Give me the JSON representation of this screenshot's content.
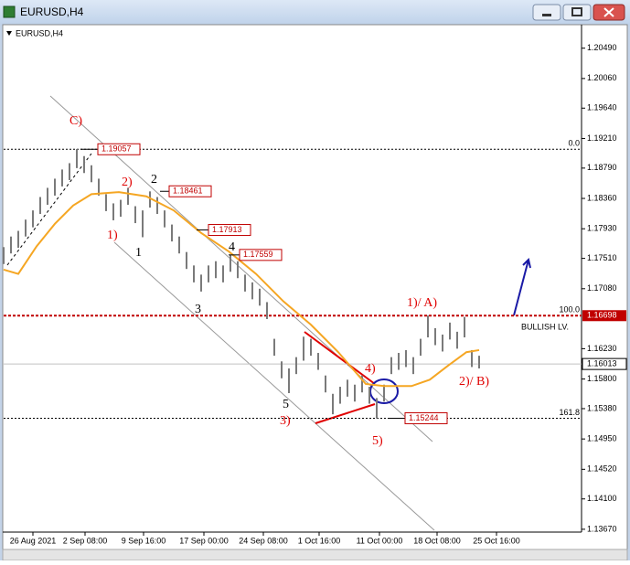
{
  "window_title": "EURUSD,H4",
  "chart_data": {
    "type": "ohlc",
    "title": "EURUSD,H4",
    "color": "#7a7a7a",
    "x": [
      0,
      4,
      8,
      12,
      16,
      20,
      24,
      28,
      32,
      36,
      40,
      44,
      48,
      52,
      56,
      60,
      64,
      68,
      72,
      76,
      80,
      84,
      88,
      92,
      96,
      100,
      104,
      108,
      112,
      116,
      120,
      124,
      128,
      132,
      136,
      140,
      144,
      148,
      152,
      156,
      160,
      164,
      168,
      172,
      176,
      180,
      184,
      188,
      192,
      196,
      200,
      204,
      208,
      212,
      216,
      220,
      224,
      228,
      232,
      236,
      240,
      244,
      248,
      252,
      256,
      260
    ],
    "high": [
      1.1767,
      1.1782,
      1.179,
      1.1806,
      1.1819,
      1.1838,
      1.1851,
      1.1864,
      1.1877,
      1.1886,
      1.1906,
      1.1896,
      1.1883,
      1.1864,
      1.1842,
      1.1829,
      1.1834,
      1.1851,
      1.1825,
      1.1819,
      1.1846,
      1.1838,
      1.1819,
      1.1799,
      1.1782,
      1.176,
      1.1741,
      1.1728,
      1.1741,
      1.1747,
      1.1741,
      1.1756,
      1.1747,
      1.1728,
      1.1717,
      1.1708,
      1.1689,
      1.1637,
      1.1605,
      1.1595,
      1.1611,
      1.164,
      1.1637,
      1.1617,
      1.1585,
      1.1559,
      1.1569,
      1.1579,
      1.1572,
      1.1585,
      1.1569,
      1.1553,
      1.1572,
      1.1611,
      1.1617,
      1.1621,
      1.1611,
      1.1637,
      1.167,
      1.1652,
      1.1643,
      1.166,
      1.1647,
      1.1668,
      1.1621,
      1.1613
    ],
    "low": [
      1.1743,
      1.1758,
      1.1766,
      1.1782,
      1.1795,
      1.1814,
      1.1827,
      1.184,
      1.1853,
      1.1862,
      1.1879,
      1.1872,
      1.1859,
      1.184,
      1.1818,
      1.1805,
      1.181,
      1.1827,
      1.1801,
      1.1781,
      1.1823,
      1.1814,
      1.1795,
      1.1775,
      1.1758,
      1.1736,
      1.1717,
      1.1704,
      1.1717,
      1.1723,
      1.1717,
      1.1732,
      1.1723,
      1.1704,
      1.1693,
      1.1684,
      1.1665,
      1.1613,
      1.1581,
      1.156,
      1.1587,
      1.1606,
      1.1613,
      1.1593,
      1.1561,
      1.153,
      1.1545,
      1.1555,
      1.1548,
      1.1561,
      1.1545,
      1.1524,
      1.1548,
      1.1587,
      1.1593,
      1.1597,
      1.1587,
      1.1613,
      1.1639,
      1.1628,
      1.1619,
      1.1636,
      1.1623,
      1.1639,
      1.1597,
      1.1595
    ],
    "ma": {
      "color": "#f5a623",
      "x": [
        0,
        8,
        18,
        28,
        38,
        48,
        63,
        78,
        93,
        108,
        123,
        138,
        153,
        168,
        183,
        198,
        208,
        223,
        233,
        243,
        253,
        260
      ],
      "values": [
        1.1735,
        1.1729,
        1.1768,
        1.18,
        1.1826,
        1.1842,
        1.1845,
        1.1839,
        1.1819,
        1.1787,
        1.1761,
        1.1729,
        1.169,
        1.1657,
        1.1618,
        1.1573,
        1.157,
        1.157,
        1.1579,
        1.1599,
        1.1618,
        1.1621
      ]
    },
    "xlim": [
      0,
      316
    ],
    "xticks": [
      {
        "value": 16,
        "label": "26 Aug 2021"
      },
      {
        "value": 44.5,
        "label": "2 Sep 08:00"
      },
      {
        "value": 76.5,
        "label": "9 Sep 16:00"
      },
      {
        "value": 109.5,
        "label": "17 Sep 00:00"
      },
      {
        "value": 142,
        "label": "24 Sep 08:00"
      },
      {
        "value": 172.5,
        "label": "1 Oct 16:00"
      },
      {
        "value": 205.5,
        "label": "11 Oct 00:00"
      },
      {
        "value": 237,
        "label": "18 Oct 08:00"
      },
      {
        "value": 269.5,
        "label": "25 Oct 16:00"
      }
    ],
    "ylim": [
      1.1363,
      1.2081
    ],
    "yticks": [
      {
        "value": 1.2049,
        "label": "1.20490"
      },
      {
        "value": 1.2006,
        "label": "1.20060"
      },
      {
        "value": 1.1964,
        "label": "1.19640"
      },
      {
        "value": 1.1921,
        "label": "1.19210"
      },
      {
        "value": 1.1879,
        "label": "1.18790"
      },
      {
        "value": 1.1836,
        "label": "1.18360"
      },
      {
        "value": 1.1793,
        "label": "1.17930"
      },
      {
        "value": 1.1751,
        "label": "1.17510"
      },
      {
        "value": 1.1708,
        "label": "1.17080"
      },
      {
        "value": 1.1623,
        "label": "1.16230"
      },
      {
        "value": 1.158,
        "label": "1.15800"
      },
      {
        "value": 1.1538,
        "label": "1.15380"
      },
      {
        "value": 1.1495,
        "label": "1.14950"
      },
      {
        "value": 1.1452,
        "label": "1.14520"
      },
      {
        "value": 1.141,
        "label": "1.14100"
      },
      {
        "value": 1.1367,
        "label": "1.13670"
      }
    ],
    "levels": [
      {
        "value": 1.19057,
        "label": "0.0"
      },
      {
        "value": 1.16698,
        "label": "100.0"
      },
      {
        "value": 1.15244,
        "label": "161.8"
      }
    ],
    "current_price": 1.16013,
    "price_labels": [
      1.19057,
      1.18461,
      1.17913,
      1.17559,
      1.15244
    ],
    "wave_labels": [
      "C)",
      "2)",
      "2",
      "1)",
      "1",
      "4",
      "3",
      "5",
      "3)",
      "4)",
      "5)",
      "1)/ A)",
      "2)/ B)"
    ],
    "annotation": "BULLISH LV."
  }
}
